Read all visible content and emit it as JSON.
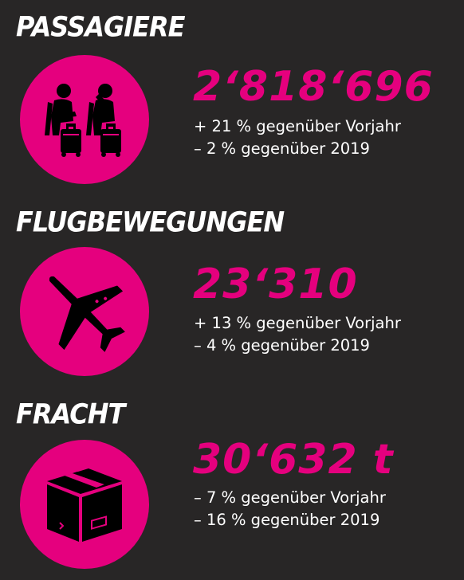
{
  "accent_color": "#e5007e",
  "background_color": "#282626",
  "sections": [
    {
      "title": "PASSAGIERE",
      "icon": "passengers-icon",
      "value": "2‘818‘696",
      "change_prev_year": "+ 21 % gegenüber Vorjahr",
      "change_2019": "– 2 % gegenüber 2019"
    },
    {
      "title": "FLUGBEWEGUNGEN",
      "icon": "airplane-icon",
      "value": "23‘310",
      "change_prev_year": "+ 13 % gegenüber Vorjahr",
      "change_2019": "– 4 % gegenüber 2019"
    },
    {
      "title": "FRACHT",
      "icon": "cargo-box-icon",
      "value": "30‘632 t",
      "change_prev_year": "– 7 % gegenüber Vorjahr",
      "change_2019": "– 16 % gegenüber 2019"
    }
  ]
}
